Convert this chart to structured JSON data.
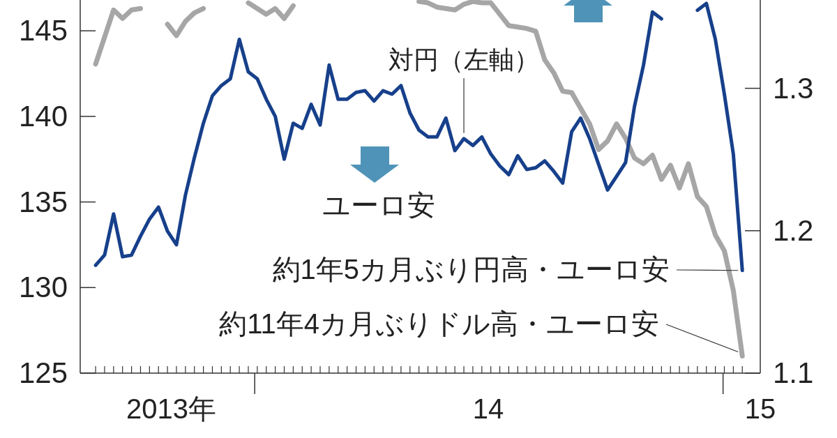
{
  "chart_data": {
    "type": "line",
    "x": [
      "2013-08-30",
      "2013-09-06",
      "2013-09-13",
      "2013-09-20",
      "2013-09-27",
      "2013-10-04",
      "2013-10-11",
      "2013-10-18",
      "2013-10-25",
      "2013-11-01",
      "2013-11-08",
      "2013-11-15",
      "2013-11-22",
      "2013-11-29",
      "2013-12-06",
      "2013-12-13",
      "2013-12-20",
      "2013-12-27",
      "2014-01-03",
      "2014-01-10",
      "2014-01-17",
      "2014-01-24",
      "2014-01-31",
      "2014-02-07",
      "2014-02-14",
      "2014-02-21",
      "2014-02-28",
      "2014-03-07",
      "2014-03-14",
      "2014-03-21",
      "2014-03-28",
      "2014-04-04",
      "2014-04-11",
      "2014-04-18",
      "2014-04-25",
      "2014-05-02",
      "2014-05-09",
      "2014-05-16",
      "2014-05-23",
      "2014-05-30",
      "2014-06-06",
      "2014-06-13",
      "2014-06-20",
      "2014-06-27",
      "2014-07-04",
      "2014-07-11",
      "2014-07-18",
      "2014-07-25",
      "2014-08-01",
      "2014-08-08",
      "2014-08-15",
      "2014-08-22",
      "2014-08-29",
      "2014-09-05",
      "2014-09-12",
      "2014-09-19",
      "2014-09-26",
      "2014-10-03",
      "2014-10-10",
      "2014-10-17",
      "2014-10-24",
      "2014-10-31",
      "2014-11-07",
      "2014-11-14",
      "2014-11-21",
      "2014-11-28",
      "2014-12-05",
      "2014-12-12",
      "2014-12-19",
      "2014-12-26",
      "2015-01-02",
      "2015-01-09",
      "2015-01-16"
    ],
    "xlim": [
      "2013-08-18",
      "2015-01-30"
    ],
    "xticks": [
      {
        "value": "2013-10-28",
        "label": "2013年"
      },
      {
        "value": "2014-01-01",
        "label": null
      },
      {
        "value": "2014-07-02",
        "label": "14"
      },
      {
        "value": "2015-01-01",
        "label": null
      },
      {
        "value": "2015-01-30",
        "label": "15"
      }
    ],
    "ylim": [
      125,
      146.8
    ],
    "yticks": [
      125,
      130,
      135,
      140,
      145
    ],
    "y2lim": [
      1.1,
      1.362
    ],
    "y2ticks": [
      1.1,
      1.2,
      1.3
    ],
    "series": [
      {
        "axis": "y2",
        "color": "#a6a6a6",
        "values": [
          1.317,
          1.336,
          1.355,
          1.349,
          1.355,
          1.356,
          null,
          null,
          1.345,
          1.337,
          1.347,
          1.353,
          1.356,
          null,
          null,
          null,
          null,
          1.36,
          1.356,
          1.352,
          1.356,
          1.349,
          1.358,
          null,
          null,
          null,
          null,
          null,
          null,
          null,
          null,
          null,
          null,
          null,
          null,
          null,
          1.361,
          1.36,
          1.357,
          1.356,
          1.355,
          1.359,
          1.361,
          1.36,
          1.36,
          1.352,
          1.344,
          1.343,
          1.342,
          1.34,
          1.32,
          1.311,
          1.298,
          1.297,
          1.286,
          1.275,
          1.257,
          1.263,
          1.275,
          1.265,
          1.251,
          1.247,
          1.253,
          1.236,
          1.246,
          1.23,
          1.247,
          1.224,
          1.217,
          1.197,
          1.186,
          1.158,
          1.112
        ]
      },
      {
        "name": "対円（左軸）",
        "axis": "y",
        "color": "#17408b",
        "values": [
          131.3,
          131.9,
          134.3,
          131.8,
          131.9,
          133.0,
          134.0,
          134.7,
          133.3,
          132.5,
          135.4,
          137.6,
          139.6,
          141.2,
          141.8,
          142.2,
          144.5,
          142.6,
          142.2,
          141.0,
          140.0,
          137.5,
          139.6,
          139.3,
          140.7,
          139.5,
          143.0,
          141.0,
          141.0,
          141.4,
          141.5,
          140.9,
          141.5,
          141.3,
          141.8,
          140.2,
          139.2,
          138.8,
          138.8,
          139.9,
          138.0,
          138.7,
          138.3,
          138.8,
          137.8,
          137.1,
          136.6,
          137.7,
          136.9,
          137.0,
          137.4,
          136.8,
          136.1,
          139.1,
          139.9,
          138.7,
          137.2,
          135.7,
          136.5,
          137.3,
          140.6,
          143.0,
          146.1,
          145.7,
          null,
          null,
          null,
          146.2,
          146.6,
          144.5,
          141.3,
          137.8,
          131.0
        ]
      }
    ],
    "annotations": [
      "ユーロ安",
      {
        "text": "約1年5カ月ぶり円高・ユーロ安",
        "x": "2015-01-16",
        "y": 131.0
      },
      {
        "text": "約11年4カ月ぶりドル高・ユーロ安",
        "x": "2015-01-16",
        "y": 126.0
      }
    ]
  }
}
